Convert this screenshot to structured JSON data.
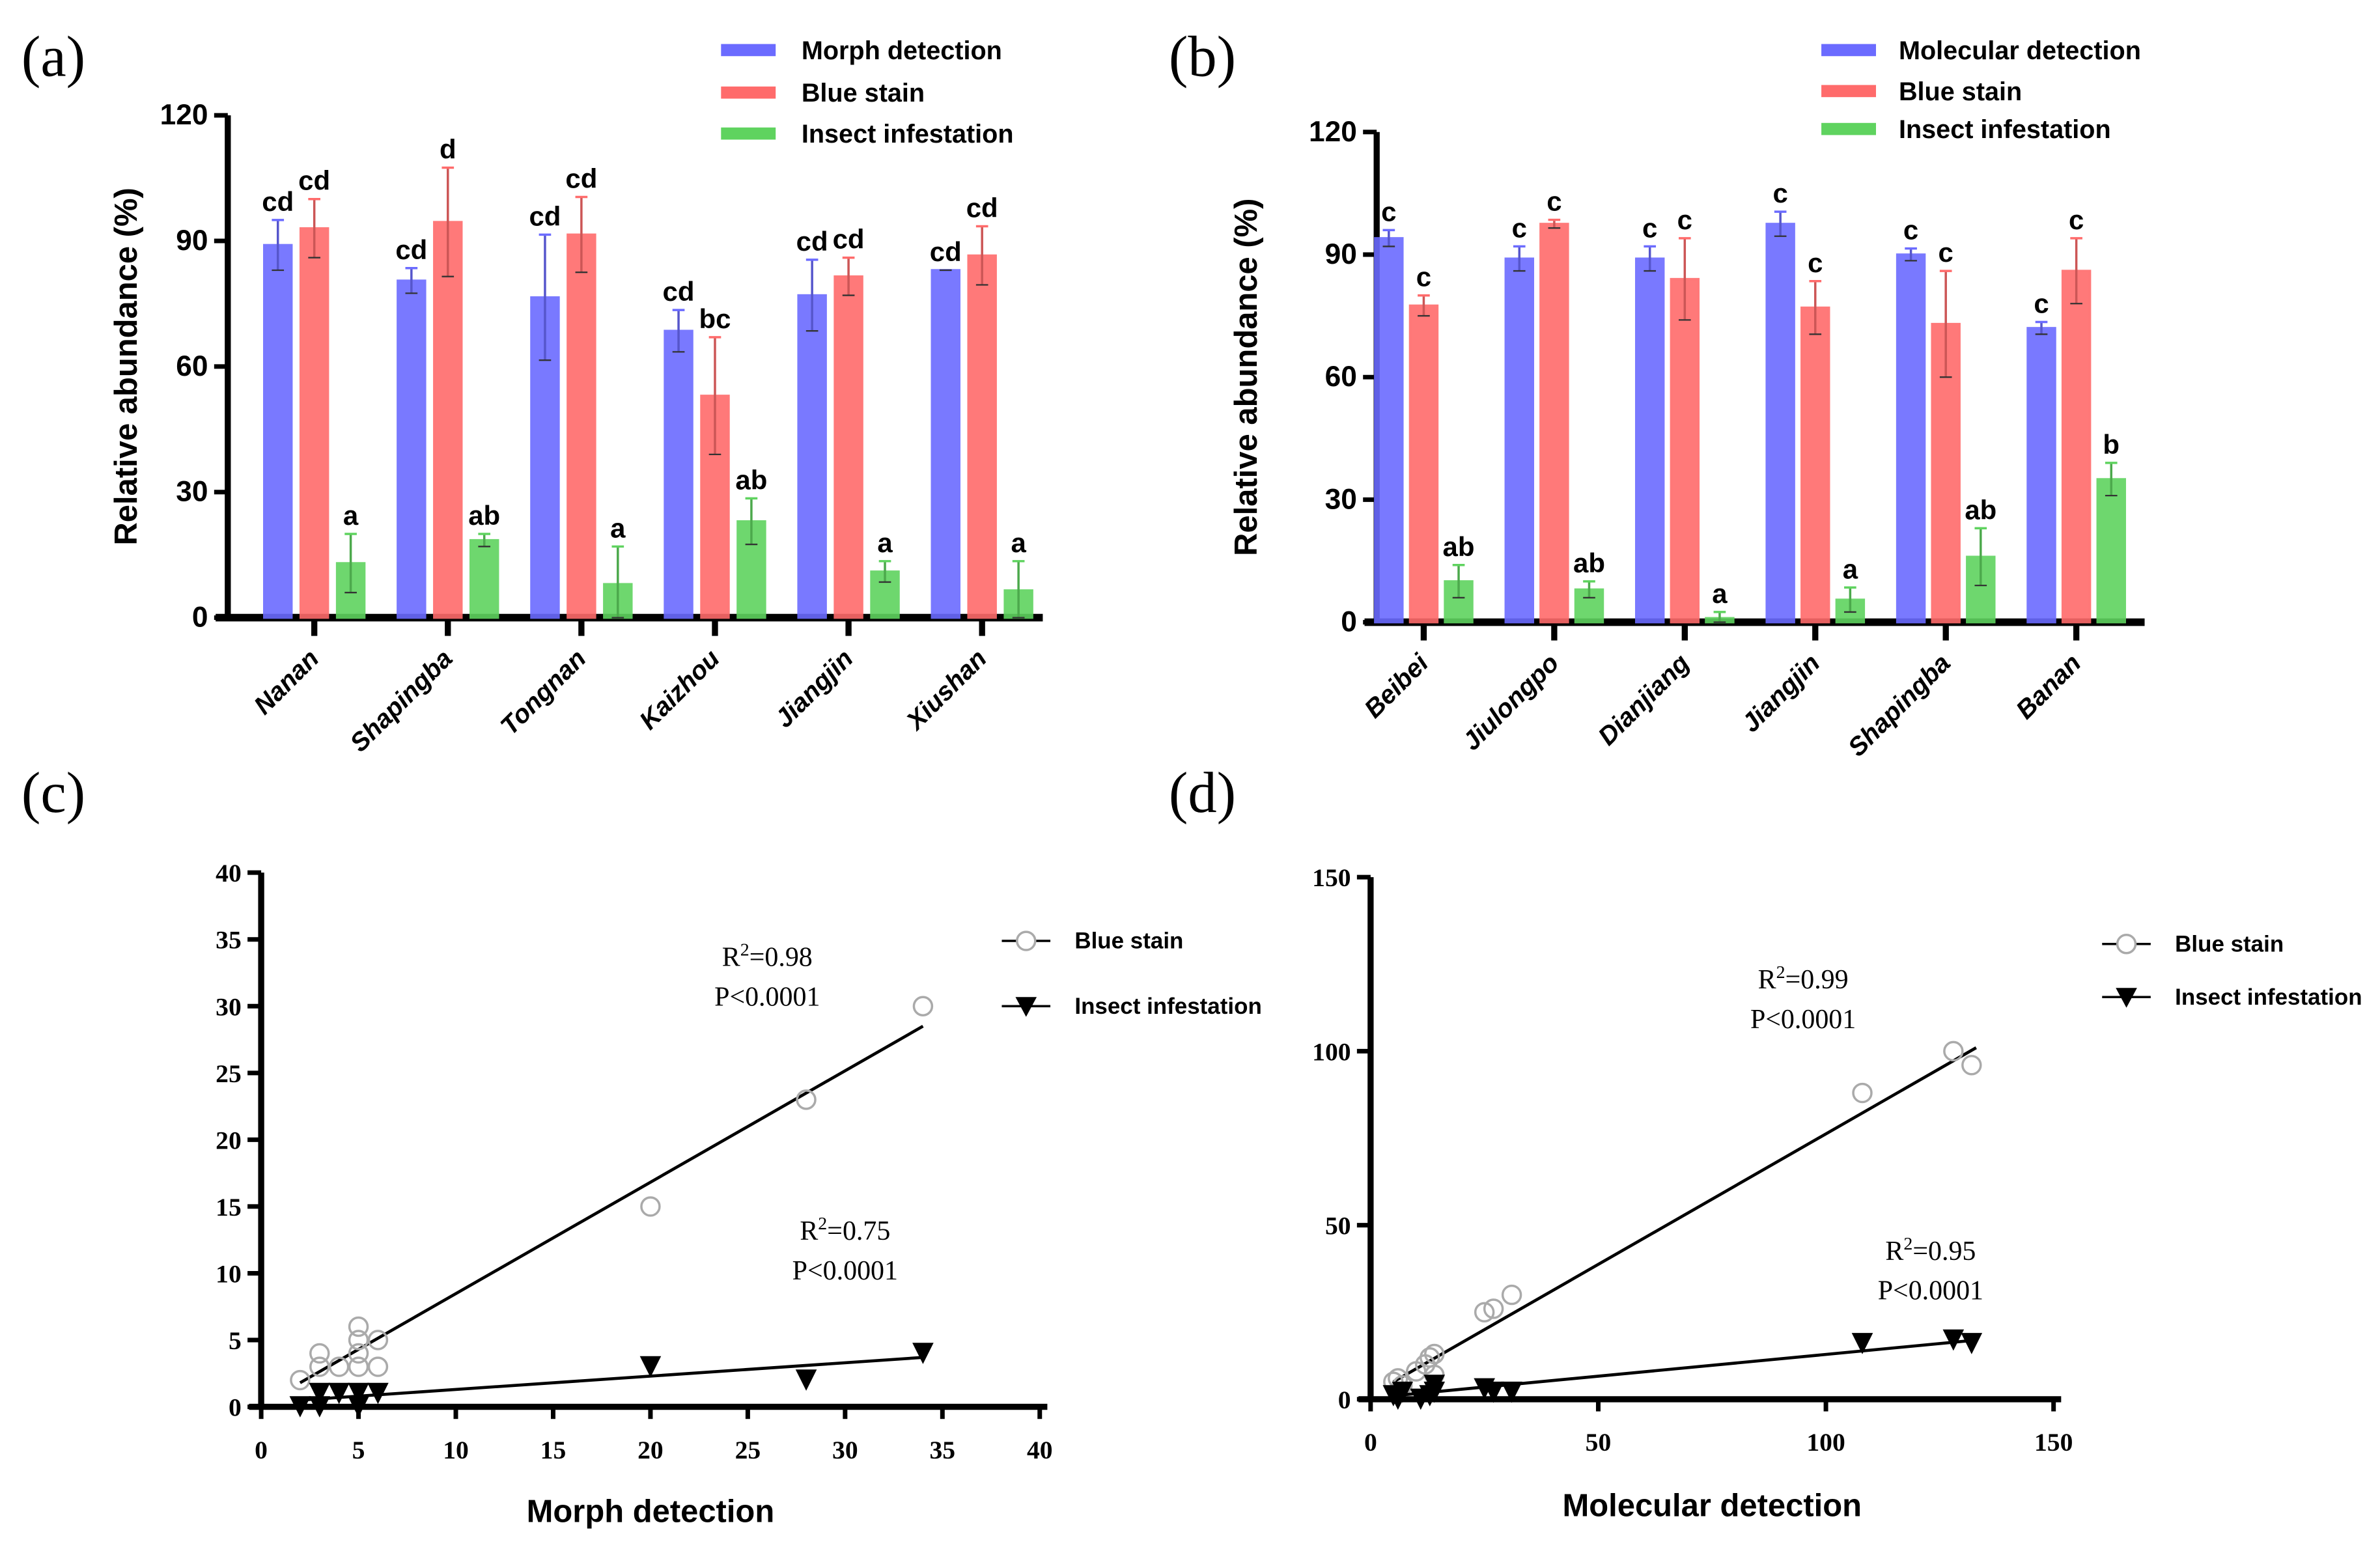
{
  "chart_data": [
    {
      "panel": "(a)",
      "type": "bar",
      "ylabel": "Relative abundance (%)",
      "ylim": [
        0,
        120
      ],
      "yticks": [
        0,
        30,
        60,
        90,
        120
      ],
      "categories": [
        "Nanan",
        "Shapingba",
        "Tongnan",
        "Kaizhou",
        "Jiangjin",
        "Xiushan"
      ],
      "series": [
        {
          "name": "Morph detection",
          "color": "#6b6bff",
          "values": [
            89,
            80.5,
            76.5,
            68.5,
            77,
            83
          ],
          "errors": [
            6,
            3,
            15,
            5,
            8.5,
            0
          ],
          "letters": [
            "cd",
            "cd",
            "cd",
            "cd",
            "cd",
            "cd"
          ]
        },
        {
          "name": "Blue stain",
          "color": "#ff6b6b",
          "values": [
            93,
            94.5,
            91.5,
            53,
            81.5,
            86.5
          ],
          "errors": [
            7,
            13,
            9,
            14,
            4.5,
            7
          ],
          "letters": [
            "cd",
            "d",
            "cd",
            "bc",
            "cd",
            "cd"
          ]
        },
        {
          "name": "Insect infestation",
          "color": "#5fd35f",
          "values": [
            13,
            18.5,
            8,
            23,
            11,
            6.5
          ],
          "errors": [
            7,
            1.5,
            9,
            5.5,
            2.5,
            7
          ],
          "letters": [
            "a",
            "ab",
            "a",
            "ab",
            "a",
            "a"
          ]
        }
      ]
    },
    {
      "panel": "(b)",
      "type": "bar",
      "ylabel": "Relative abundance (%)",
      "ylim": [
        0,
        120
      ],
      "yticks": [
        0,
        30,
        60,
        90,
        120
      ],
      "categories": [
        "Beibei",
        "Jiulongpo",
        "Dianjiang",
        "Jiangjin",
        "Shapingba",
        "Banan"
      ],
      "series": [
        {
          "name": "Molecular detection",
          "color": "#6b6bff",
          "values": [
            94,
            89,
            89,
            97.5,
            90,
            72
          ],
          "errors": [
            2,
            3,
            3,
            3,
            1.5,
            1.5
          ],
          "letters": [
            "c",
            "c",
            "c",
            "c",
            "c",
            "c"
          ]
        },
        {
          "name": "Blue stain",
          "color": "#ff6b6b",
          "values": [
            77.5,
            97.5,
            84,
            77,
            73,
            86
          ],
          "errors": [
            2.5,
            1,
            10,
            6.5,
            13,
            8
          ],
          "letters": [
            "c",
            "c",
            "c",
            "c",
            "c",
            "c"
          ]
        },
        {
          "name": "Insect infestation",
          "color": "#5fd35f",
          "values": [
            10,
            8,
            1,
            5.5,
            16,
            35
          ],
          "errors": [
            4,
            2,
            1.5,
            3,
            7,
            4
          ],
          "letters": [
            "ab",
            "ab",
            "a",
            "a",
            "ab",
            "b"
          ]
        }
      ]
    },
    {
      "panel": "(c)",
      "type": "scatter",
      "xlabel": "Morph detection",
      "ylabel": "",
      "xlim": [
        0,
        40
      ],
      "ylim": [
        0,
        40
      ],
      "xticks": [
        0,
        5,
        10,
        15,
        20,
        25,
        30,
        35,
        40
      ],
      "yticks": [
        0,
        5,
        10,
        15,
        20,
        25,
        30,
        35,
        40
      ],
      "series": [
        {
          "name": "Blue stain",
          "marker": "open-circle",
          "points": [
            [
              2,
              2
            ],
            [
              3,
              4
            ],
            [
              3,
              3
            ],
            [
              4,
              3
            ],
            [
              5,
              6
            ],
            [
              5,
              5
            ],
            [
              5,
              4
            ],
            [
              5,
              3
            ],
            [
              6,
              5
            ],
            [
              6,
              3
            ],
            [
              20,
              15
            ],
            [
              28,
              23
            ],
            [
              34,
              30
            ]
          ],
          "fit": [
            [
              2,
              1.8
            ],
            [
              34,
              28.5
            ]
          ],
          "annotation": {
            "r2": "R²=0.98",
            "r2_base": "R",
            "r2_rest": "=0.98",
            "p": "P<0.0001",
            "at": [
              26,
              33
            ]
          }
        },
        {
          "name": "Insect infestation",
          "marker": "filled-triangle-down",
          "points": [
            [
              2,
              0
            ],
            [
              3,
              0
            ],
            [
              3,
              1
            ],
            [
              4,
              1
            ],
            [
              5,
              1
            ],
            [
              5,
              0
            ],
            [
              6,
              1
            ],
            [
              20,
              3
            ],
            [
              28,
              2
            ],
            [
              34,
              4
            ]
          ],
          "fit": [
            [
              2,
              0.5
            ],
            [
              34,
              3.7
            ]
          ],
          "annotation": {
            "r2": "R²=0.75",
            "r2_base": "R",
            "r2_rest": "=0.75",
            "p": "P<0.0001",
            "at": [
              30,
              12.5
            ]
          }
        }
      ]
    },
    {
      "panel": "(d)",
      "type": "scatter",
      "xlabel": "Molecular detection",
      "ylabel": "",
      "xlim": [
        0,
        150
      ],
      "ylim": [
        0,
        150
      ],
      "xticks": [
        0,
        50,
        100,
        150
      ],
      "yticks": [
        0,
        50,
        100,
        150
      ],
      "series": [
        {
          "name": "Blue stain",
          "marker": "open-circle",
          "points": [
            [
              5,
              5
            ],
            [
              6,
              6
            ],
            [
              7,
              4
            ],
            [
              10,
              8
            ],
            [
              12,
              10
            ],
            [
              13,
              12
            ],
            [
              14,
              13
            ],
            [
              14,
              7
            ],
            [
              25,
              25
            ],
            [
              27,
              26
            ],
            [
              31,
              30
            ],
            [
              108,
              88
            ],
            [
              128,
              100
            ],
            [
              132,
              96
            ]
          ],
          "fit": [
            [
              5,
              5
            ],
            [
              133,
              101
            ]
          ],
          "annotation": {
            "r2": "R²=0.99",
            "r2_base": "R",
            "r2_rest": "=0.99",
            "p": "P<0.0001",
            "at": [
              95,
              118
            ]
          }
        },
        {
          "name": "Insect infestation",
          "marker": "filled-triangle-down",
          "points": [
            [
              5,
              1
            ],
            [
              6,
              0
            ],
            [
              7,
              2
            ],
            [
              11,
              0
            ],
            [
              13,
              1
            ],
            [
              14,
              4
            ],
            [
              14,
              2
            ],
            [
              25,
              3
            ],
            [
              27,
              2
            ],
            [
              31,
              2
            ],
            [
              108,
              16
            ],
            [
              128,
              17
            ],
            [
              132,
              16
            ]
          ],
          "fit": [
            [
              5,
              1
            ],
            [
              133,
              17
            ]
          ],
          "annotation": {
            "r2": "R²=0.95",
            "r2_base": "R",
            "r2_rest": "=0.95",
            "p": "P<0.0001",
            "at": [
              123,
              40
            ]
          }
        }
      ]
    }
  ]
}
